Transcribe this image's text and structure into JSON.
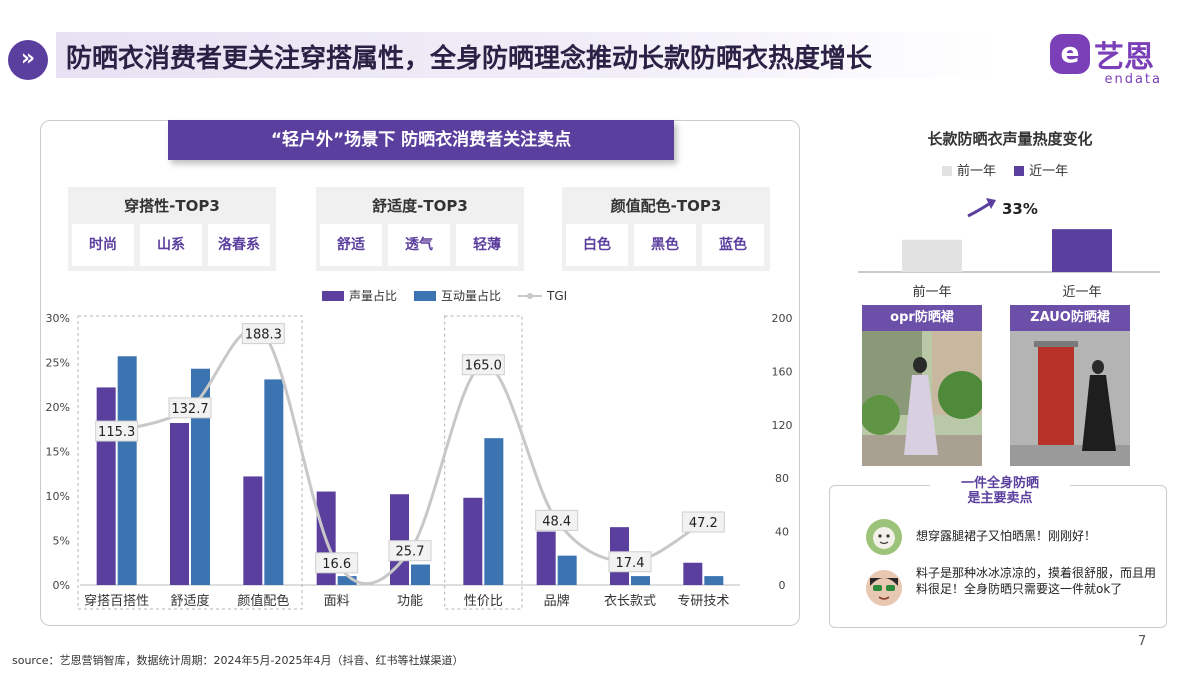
{
  "header": {
    "icon_glyph": "»",
    "title": "防晒衣消费者更关注穿搭属性，全身防晒理念推动长款防晒衣热度增长"
  },
  "logo": {
    "badge_glyph": "e",
    "cn": "艺恩",
    "en": "endata"
  },
  "panel": {
    "banner": "“轻户外”场景下 防晒衣消费者关注卖点",
    "groups": [
      {
        "title": "穿搭性-TOP3",
        "items": [
          "时尚",
          "山系",
          "洛春系"
        ]
      },
      {
        "title": "舒适度-TOP3",
        "items": [
          "舒适",
          "透气",
          "轻薄"
        ]
      },
      {
        "title": "颜值配色-TOP3",
        "items": [
          "白色",
          "黑色",
          "蓝色"
        ]
      }
    ]
  },
  "chart_data": [
    {
      "type": "bar",
      "categories": [
        "穿搭百搭性",
        "舒适度",
        "颜值配色",
        "面料",
        "功能",
        "性价比",
        "品牌",
        "衣长款式",
        "专研技术"
      ],
      "series": [
        {
          "name": "声量占比",
          "values": [
            22.2,
            18.2,
            12.2,
            10.5,
            10.2,
            9.8,
            6.0,
            6.5,
            2.5
          ],
          "color": "#5b3f9e"
        },
        {
          "name": "互动量占比",
          "values": [
            25.7,
            24.3,
            23.1,
            1.0,
            2.3,
            16.5,
            3.3,
            1.0,
            1.0
          ],
          "color": "#3b74b1"
        },
        {
          "name": "TGI",
          "values": [
            115.3,
            132.7,
            188.3,
            16.6,
            25.7,
            165.0,
            48.4,
            17.4,
            47.2
          ],
          "color": "#c8c8c8",
          "axis": "right"
        }
      ],
      "y_left": {
        "range": [
          0,
          30
        ],
        "ticks": [
          "0%",
          "5%",
          "10%",
          "15%",
          "20%",
          "25%",
          "30%"
        ]
      },
      "y_right": {
        "range": [
          0,
          200
        ],
        "ticks": [
          "0",
          "40",
          "80",
          "120",
          "160",
          "200"
        ]
      },
      "highlighted_categories": [
        "穿搭百搭性",
        "舒适度",
        "颜值配色",
        "性价比"
      ],
      "legend_position": "top"
    },
    {
      "type": "bar",
      "title": "长款防晒衣声量热度变化",
      "categories": [
        "前一年",
        "近一年"
      ],
      "values": [
        1.0,
        1.33
      ],
      "colors": [
        "#e2e2e2",
        "#5b3f9e"
      ],
      "legend": [
        "前一年",
        "近一年"
      ],
      "annotation": "33%"
    }
  ],
  "right": {
    "photo1_label": "opr防晒裙",
    "photo2_label": "ZAUO防晒裙",
    "review_head": "一件全身防晒\n是主要卖点",
    "reviews": [
      "想穿露腿裙子又怕晒黑！刚刚好！",
      "料子是那种冰冰凉凉的，摸着很舒服，而且用料很足！全身防晒只需要这一件就ok了"
    ]
  },
  "footer": {
    "source": "source：艺恩营销智库，数据统计周期：2024年5月-2025年4月（抖音、红书等社媒渠道）",
    "page": "7"
  }
}
